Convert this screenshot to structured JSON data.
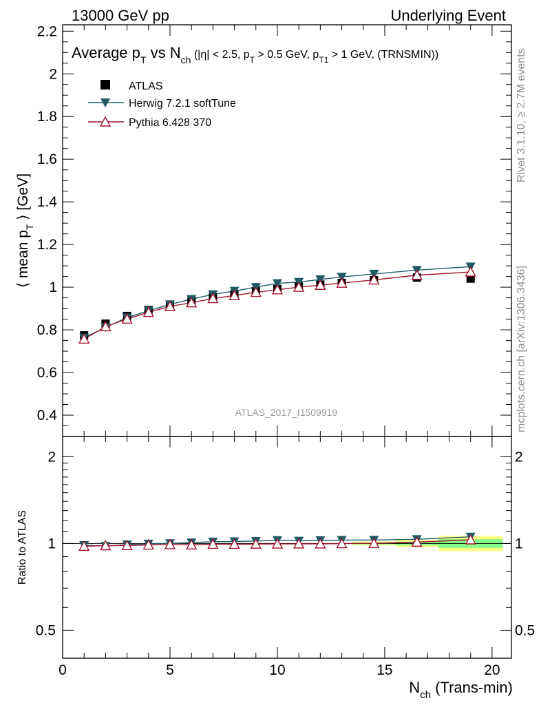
{
  "header": {
    "left": "13000 GeV pp",
    "right": "Underlying Event"
  },
  "title": {
    "main": "Average p",
    "main_sub": "T",
    "vs": " vs N",
    "vs_sub": "ch",
    "cuts_a": " (|η| < 2.5, p",
    "cuts_a_sub": "T",
    "cuts_b": " > 0.5 GeV, p",
    "cuts_b_sub": "T1",
    "cuts_c": " > 1 GeV, (TRNSMIN))"
  },
  "side_labels": {
    "rivet": "Rivet 3.1.10, ≥ 2.7M events",
    "mcplots": "mcplots.cern.ch [arXiv:1306.3436]"
  },
  "analysis_label": "ATLAS_2017_I1509919",
  "colors": {
    "atlas": "#000000",
    "herwig": "#1f5a63",
    "pythia": "#a0142c",
    "band_outer": "#ffff88",
    "band_inner": "#88ff88",
    "side_text": "#8c8c8c"
  },
  "chart_data": [
    {
      "type": "scatter",
      "panel": "main",
      "ylabel_a": "⟨ mean p",
      "ylabel_sub": "T",
      "ylabel_b": " ⟩ [GeV]",
      "xlim": [
        0,
        20.9
      ],
      "ylim": [
        0.3,
        2.23
      ],
      "yticks": [
        0.4,
        0.6,
        0.8,
        1,
        1.2,
        1.4,
        1.6,
        1.8,
        2,
        2.2
      ],
      "ytick_labels": [
        "0.4",
        "0.6",
        "0.8",
        "1",
        "1.2",
        "1.4",
        "1.6",
        "1.8",
        "2",
        "2.2"
      ],
      "x": [
        1,
        2,
        3,
        4,
        5,
        6,
        7,
        8,
        9,
        10,
        11,
        12,
        13,
        14.5,
        16.5,
        19
      ],
      "series": [
        {
          "name": "ATLAS",
          "marker": "square",
          "values": [
            0.774,
            0.829,
            0.865,
            0.893,
            0.918,
            0.937,
            0.953,
            0.967,
            0.981,
            0.992,
            1.003,
            1.012,
            1.02,
            1.033,
            1.045,
            1.04
          ]
        },
        {
          "name": "Herwig 7.2.1 softTune",
          "marker": "triangle-down",
          "values": [
            0.763,
            0.812,
            0.857,
            0.89,
            0.919,
            0.944,
            0.966,
            0.982,
            1.0,
            1.018,
            1.024,
            1.036,
            1.048,
            1.062,
            1.08,
            1.096
          ]
        },
        {
          "name": "Pythia 6.428 370",
          "marker": "triangle-up",
          "values": [
            0.757,
            0.815,
            0.851,
            0.882,
            0.91,
            0.927,
            0.947,
            0.961,
            0.976,
            0.988,
            1.0,
            1.009,
            1.019,
            1.034,
            1.056,
            1.071
          ]
        }
      ],
      "legend": {
        "placement": "top-left"
      },
      "grid": false
    },
    {
      "type": "scatter",
      "panel": "ratio",
      "ylabel": "Ratio to ATLAS",
      "xlabel_a": "N",
      "xlabel_sub": "ch",
      "xlabel_b": " (Trans-min)",
      "xlim": [
        0,
        20.9
      ],
      "ylim": [
        0.4,
        2.35
      ],
      "yscale": "log",
      "yticks": [
        0.5,
        1,
        2
      ],
      "ytick_labels": [
        "0.5",
        "1",
        "2"
      ],
      "xticks": [
        0,
        5,
        10,
        15,
        20
      ],
      "xtick_labels": [
        "0",
        "5",
        "10",
        "15",
        "20"
      ],
      "x": [
        1,
        2,
        3,
        4,
        5,
        6,
        7,
        8,
        9,
        10,
        11,
        12,
        13,
        14.5,
        16.5,
        19
      ],
      "reference": 1,
      "uncertainty_band": [
        {
          "x_range": [
            13.5,
            15.5
          ],
          "inner": [
            0.992,
            1.008
          ],
          "outer": [
            0.985,
            1.015
          ]
        },
        {
          "x_range": [
            15.5,
            17.5
          ],
          "inner": [
            0.985,
            1.015
          ],
          "outer": [
            0.972,
            1.028
          ]
        },
        {
          "x_range": [
            17.5,
            20.5
          ],
          "inner": [
            0.965,
            1.035
          ],
          "outer": [
            0.94,
            1.062
          ]
        }
      ],
      "series": [
        {
          "name": "Herwig 7.2.1 softTune",
          "marker": "triangle-down",
          "values": [
            0.986,
            0.979,
            0.991,
            0.997,
            1.001,
            1.007,
            1.014,
            1.016,
            1.019,
            1.026,
            1.021,
            1.024,
            1.027,
            1.028,
            1.034,
            1.054
          ]
        },
        {
          "name": "Pythia 6.428 370",
          "marker": "triangle-up",
          "values": [
            0.978,
            0.983,
            0.984,
            0.988,
            0.991,
            0.989,
            0.994,
            0.994,
            0.995,
            0.996,
            0.997,
            0.997,
            0.999,
            1.001,
            1.011,
            1.03
          ]
        }
      ]
    }
  ]
}
